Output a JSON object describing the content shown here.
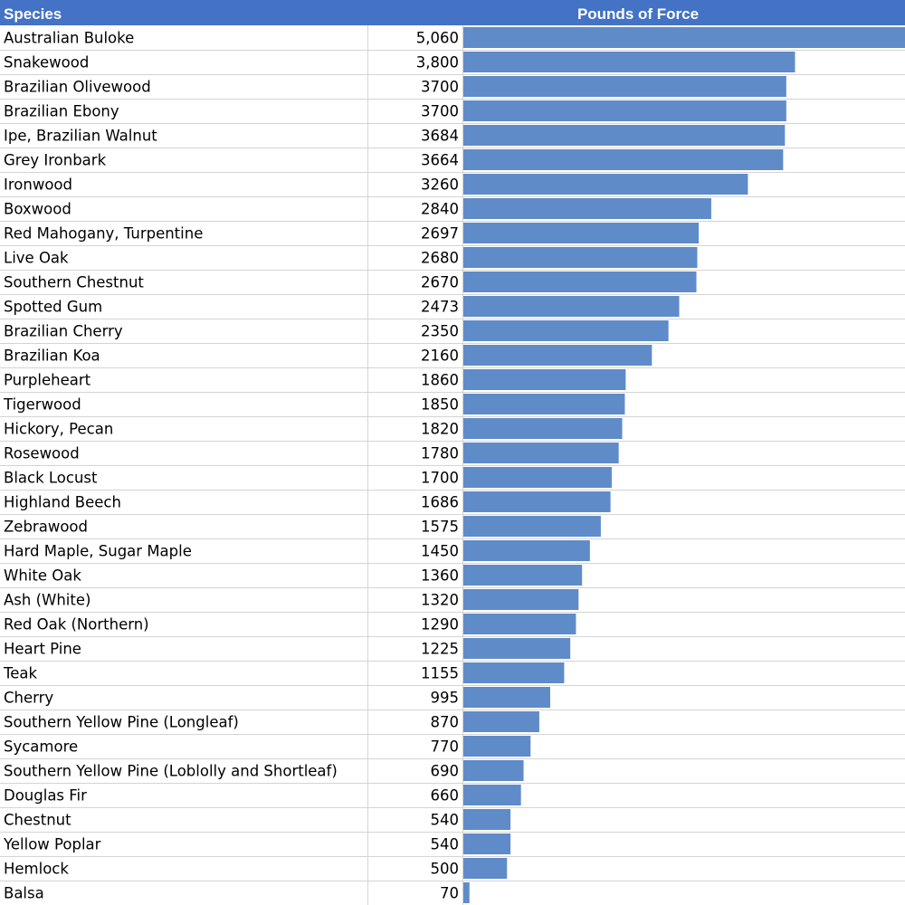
{
  "table": {
    "species_header": "Species",
    "value_header": "Pounds of Force"
  },
  "colors": {
    "header_bg": "#4472c4",
    "header_text": "#ffffff",
    "bar": "#5f8bc9",
    "gridline": "#d4d4d4"
  },
  "chart_data": {
    "type": "bar",
    "orientation": "horizontal",
    "categories": [
      "Australian Buloke",
      "Snakewood",
      "Brazilian Olivewood",
      "Brazilian Ebony",
      "Ipe, Brazilian Walnut",
      "Grey Ironbark",
      "Ironwood",
      "Boxwood",
      "Red Mahogany, Turpentine",
      "Live Oak",
      "Southern Chestnut",
      "Spotted Gum",
      "Brazilian Cherry",
      "Brazilian Koa",
      "Purpleheart",
      "Tigerwood",
      "Hickory, Pecan",
      "Rosewood",
      "Black Locust",
      "Highland Beech",
      "Zebrawood",
      "Hard Maple, Sugar Maple",
      "White Oak",
      "Ash (White)",
      "Red Oak (Northern)",
      "Heart Pine",
      "Teak",
      "Cherry",
      "Southern Yellow Pine (Longleaf)",
      "Sycamore",
      "Southern Yellow Pine (Loblolly and Shortleaf)",
      "Douglas Fir",
      "Chestnut",
      "Yellow Poplar",
      "Hemlock",
      "Balsa"
    ],
    "values": [
      5060,
      3800,
      3700,
      3700,
      3684,
      3664,
      3260,
      2840,
      2697,
      2680,
      2670,
      2473,
      2350,
      2160,
      1860,
      1850,
      1820,
      1780,
      1700,
      1686,
      1575,
      1450,
      1360,
      1320,
      1290,
      1225,
      1155,
      995,
      870,
      770,
      690,
      660,
      540,
      540,
      500,
      70
    ],
    "value_labels": [
      "5,060",
      "3,800",
      "3700",
      "3700",
      "3684",
      "3664",
      "3260",
      "2840",
      "2697",
      "2680",
      "2670",
      "2473",
      "2350",
      "2160",
      "1860",
      "1850",
      "1820",
      "1780",
      "1700",
      "1686",
      "1575",
      "1450",
      "1360",
      "1320",
      "1290",
      "1225",
      "1155",
      "995",
      "870",
      "770",
      "690",
      "660",
      "540",
      "540",
      "500",
      "70"
    ],
    "xlim": [
      0,
      5060
    ],
    "title": "",
    "xlabel": "",
    "ylabel": "",
    "grid": true,
    "legend": "none"
  }
}
